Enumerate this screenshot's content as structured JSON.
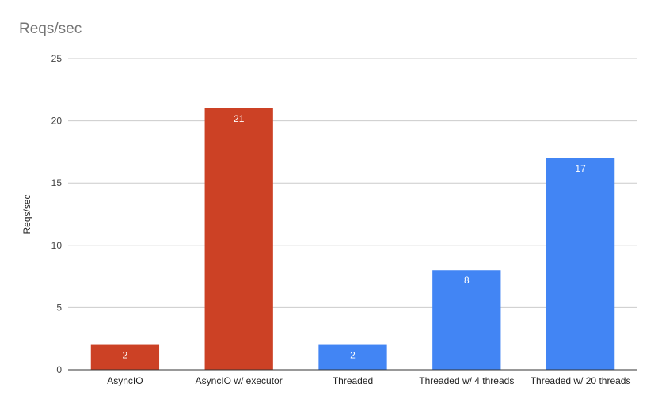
{
  "chart_data": {
    "type": "bar",
    "title": "Reqs/sec",
    "xlabel": "",
    "ylabel": "Reqs/sec",
    "categories": [
      "AsyncIO",
      "AsyncIO w/ executor",
      "Threaded",
      "Threaded w/ 4 threads",
      "Threaded w/ 20 threads"
    ],
    "values": [
      2,
      21,
      2,
      8,
      17
    ],
    "data_labels": [
      "2",
      "21",
      "2",
      "8",
      "17"
    ],
    "bar_colors": [
      "#cc4125",
      "#cc4125",
      "#4285f4",
      "#4285f4",
      "#4285f4"
    ],
    "ylim": [
      0,
      25
    ],
    "yticks": [
      0,
      5,
      10,
      15,
      20,
      25
    ],
    "grid": true,
    "legend": "none"
  }
}
